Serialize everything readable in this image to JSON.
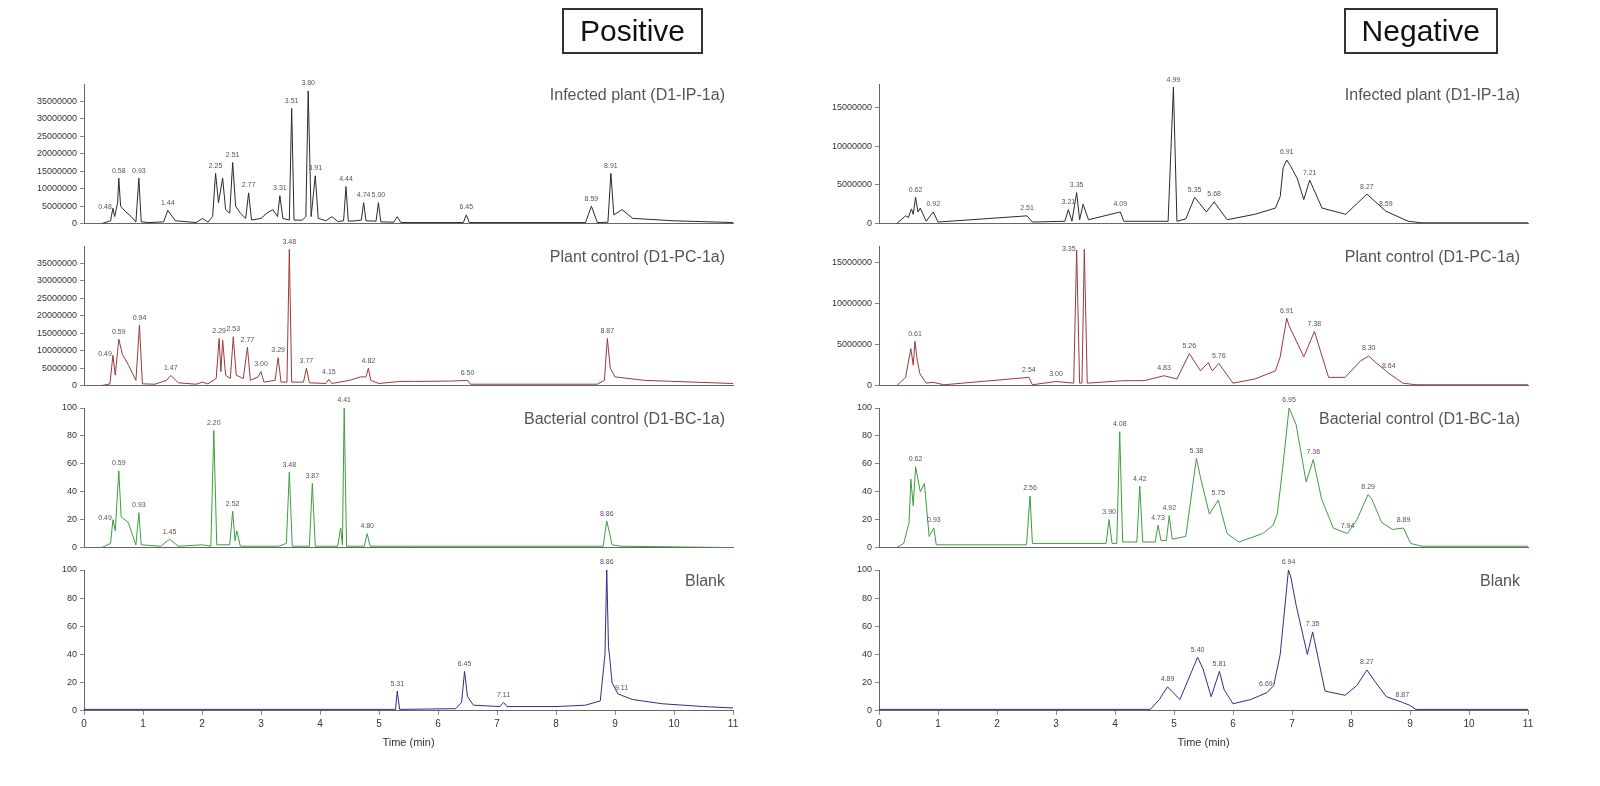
{
  "chart_data": [
    {
      "type": "line",
      "title": "Positive",
      "annotations": [
        "Infected plant (D1-IP-1a)",
        {
          "text": "0.48",
          "x": 0.49,
          "y": 4400000
        },
        {
          "text": "0.58",
          "x": 0.59,
          "y": 13000000
        },
        {
          "text": "0.93",
          "x": 0.93,
          "y": 13000000
        },
        {
          "text": "1.44",
          "x": 1.42,
          "y": 3800000
        },
        {
          "text": "2.25",
          "x": 2.23,
          "y": 14400000
        },
        {
          "text": "2.51",
          "x": 2.52,
          "y": 17500000
        },
        {
          "text": "2.77",
          "x": 2.79,
          "y": 8800000
        },
        {
          "text": "3.31",
          "x": 3.32,
          "y": 8000000
        },
        {
          "text": "3.51",
          "x": 3.52,
          "y": 33000000
        },
        {
          "text": "3.80",
          "x": 3.8,
          "y": 38000000
        },
        {
          "text": "3.91",
          "x": 3.92,
          "y": 13700000
        },
        {
          "text": "4.44",
          "x": 4.44,
          "y": 10600000
        },
        {
          "text": "4.74",
          "x": 4.74,
          "y": 6000000
        },
        {
          "text": "5.00",
          "x": 4.99,
          "y": 6000000
        },
        {
          "text": "6.45",
          "x": 6.48,
          "y": 2500000
        },
        {
          "text": "8.59",
          "x": 8.6,
          "y": 5000000
        },
        {
          "text": "8.91",
          "x": 8.93,
          "y": 14400000
        }
      ],
      "series": [
        {
          "color": "#2b2b2b",
          "x": [
            0.3,
            0.45,
            0.49,
            0.52,
            0.57,
            0.59,
            0.62,
            0.7,
            0.8,
            0.88,
            0.93,
            0.97,
            1.1,
            1.35,
            1.42,
            1.55,
            1.9,
            2.01,
            2.1,
            2.18,
            2.23,
            2.28,
            2.35,
            2.4,
            2.47,
            2.52,
            2.57,
            2.65,
            2.74,
            2.79,
            2.84,
            3.0,
            3.1,
            3.2,
            3.28,
            3.32,
            3.37,
            3.48,
            3.52,
            3.56,
            3.7,
            3.76,
            3.8,
            3.85,
            3.92,
            3.97,
            4.1,
            4.2,
            4.3,
            4.4,
            4.44,
            4.48,
            4.6,
            4.7,
            4.74,
            4.78,
            4.95,
            4.99,
            5.03,
            5.25,
            5.31,
            5.37,
            6.43,
            6.48,
            6.53,
            8.5,
            8.6,
            8.7,
            8.88,
            8.93,
            8.98,
            9.12,
            9.3,
            10.0,
            11.0
          ],
          "values": [
            0,
            800000,
            4400000,
            2000000,
            6000000,
            13000000,
            5000000,
            3500000,
            2000000,
            500000,
            13000000,
            500000,
            300000,
            500000,
            3800000,
            800000,
            300000,
            1500000,
            400000,
            2000000,
            14400000,
            6000000,
            13000000,
            4000000,
            3000000,
            17500000,
            5000000,
            3000000,
            1500000,
            8800000,
            1000000,
            1500000,
            3000000,
            4000000,
            2000000,
            8000000,
            1500000,
            1000000,
            33000000,
            1000000,
            1000000,
            2000000,
            38000000,
            2000000,
            13700000,
            1500000,
            800000,
            2000000,
            600000,
            800000,
            10600000,
            700000,
            800000,
            1000000,
            6000000,
            800000,
            700000,
            6000000,
            500000,
            400000,
            2000000,
            300000,
            300000,
            2500000,
            300000,
            300000,
            5000000,
            300000,
            400000,
            14400000,
            2500000,
            4000000,
            1500000,
            800000,
            300000
          ]
        }
      ],
      "xlim": [
        0,
        11
      ],
      "xticks": [
        0,
        1,
        2,
        3,
        4,
        5,
        6,
        7,
        8,
        9,
        10,
        11
      ],
      "ylim": [
        0,
        40000000
      ],
      "yticks": [
        0,
        5000000,
        10000000,
        15000000,
        20000000,
        25000000,
        30000000,
        35000000
      ],
      "tick_labels": "y",
      "marker": "none",
      "line_style": "solid"
    },
    {
      "type": "line",
      "annotations": [
        "Plant control (D1-PC-1a)",
        {
          "text": "0.49",
          "x": 0.49,
          "y": 8700000
        },
        {
          "text": "0.59",
          "x": 0.59,
          "y": 13300000
        },
        {
          "text": "0.94",
          "x": 0.94,
          "y": 17300000
        },
        {
          "text": "1.47",
          "x": 1.47,
          "y": 2900000
        },
        {
          "text": "2.29",
          "x": 2.29,
          "y": 13500000
        },
        {
          "text": "2.53",
          "x": 2.53,
          "y": 14000000
        },
        {
          "text": "2.77",
          "x": 2.77,
          "y": 11000000
        },
        {
          "text": "3.00",
          "x": 3.0,
          "y": 4000000
        },
        {
          "text": "3.29",
          "x": 3.29,
          "y": 8000000
        },
        {
          "text": "3.48",
          "x": 3.48,
          "y": 39000000
        },
        {
          "text": "3.77",
          "x": 3.77,
          "y": 5000000
        },
        {
          "text": "4.15",
          "x": 4.15,
          "y": 1800000
        },
        {
          "text": "4.82",
          "x": 4.82,
          "y": 5000000
        },
        {
          "text": "6.50",
          "x": 6.5,
          "y": 1500000
        },
        {
          "text": "8.87",
          "x": 8.87,
          "y": 13500000
        }
      ],
      "series": [
        {
          "color": "#9c3a3a",
          "x": [
            0.3,
            0.44,
            0.49,
            0.53,
            0.59,
            0.65,
            0.75,
            0.88,
            0.94,
            0.99,
            1.2,
            1.4,
            1.47,
            1.6,
            1.9,
            2.01,
            2.1,
            2.24,
            2.29,
            2.32,
            2.35,
            2.4,
            2.48,
            2.53,
            2.58,
            2.7,
            2.77,
            2.82,
            2.95,
            3.0,
            3.05,
            3.24,
            3.29,
            3.34,
            3.44,
            3.48,
            3.52,
            3.72,
            3.77,
            3.82,
            4.1,
            4.15,
            4.2,
            4.5,
            4.69,
            4.78,
            4.82,
            4.86,
            5.0,
            5.35,
            5.62,
            6.23,
            6.5,
            6.55,
            8.7,
            8.82,
            8.87,
            8.92,
            9.0,
            9.5,
            11.0
          ],
          "values": [
            0,
            500000,
            8700000,
            3000000,
            13300000,
            9000000,
            6000000,
            1500000,
            17300000,
            500000,
            400000,
            1500000,
            2900000,
            800000,
            400000,
            1000000,
            500000,
            2000000,
            13500000,
            4000000,
            13000000,
            3000000,
            2000000,
            14000000,
            3000000,
            2000000,
            11000000,
            1500000,
            2500000,
            4000000,
            1000000,
            1500000,
            8000000,
            1000000,
            1000000,
            39000000,
            1000000,
            1000000,
            5000000,
            800000,
            600000,
            1800000,
            600000,
            1500000,
            2500000,
            2500000,
            5000000,
            1500000,
            600000,
            1200000,
            1200000,
            1300000,
            1500000,
            400000,
            400000,
            1500000,
            13500000,
            5000000,
            2500000,
            1500000,
            600000
          ]
        }
      ],
      "xlim": [
        0,
        11
      ],
      "xticks": [
        0,
        1,
        2,
        3,
        4,
        5,
        6,
        7,
        8,
        9,
        10,
        11
      ],
      "ylim": [
        0,
        40000000
      ],
      "yticks": [
        0,
        5000000,
        10000000,
        15000000,
        20000000,
        25000000,
        30000000,
        35000000
      ],
      "tick_labels": "y",
      "marker": "none",
      "line_style": "solid"
    },
    {
      "type": "line",
      "annotations": [
        "Bacterial control (D1-BC-1a)",
        {
          "text": "0.49",
          "x": 0.49,
          "y": 20
        },
        {
          "text": "0.59",
          "x": 0.59,
          "y": 55
        },
        {
          "text": "0.93",
          "x": 0.93,
          "y": 25
        },
        {
          "text": "1.45",
          "x": 1.45,
          "y": 6
        },
        {
          "text": "2.20",
          "x": 2.2,
          "y": 84
        },
        {
          "text": "2.52",
          "x": 2.52,
          "y": 26
        },
        {
          "text": "3.48",
          "x": 3.48,
          "y": 54
        },
        {
          "text": "3.87",
          "x": 3.87,
          "y": 46
        },
        {
          "text": "4.41",
          "x": 4.41,
          "y": 100
        },
        {
          "text": "4.80",
          "x": 4.8,
          "y": 10
        },
        {
          "text": "8.86",
          "x": 8.86,
          "y": 19
        }
      ],
      "series": [
        {
          "color": "#3e9e3e",
          "x": [
            0.3,
            0.45,
            0.49,
            0.53,
            0.59,
            0.63,
            0.75,
            0.88,
            0.93,
            0.97,
            1.3,
            1.45,
            1.6,
            2.01,
            2.15,
            2.2,
            2.25,
            2.47,
            2.52,
            2.56,
            2.59,
            2.65,
            3.3,
            3.43,
            3.48,
            3.53,
            3.82,
            3.87,
            3.92,
            4.3,
            4.35,
            4.38,
            4.41,
            4.45,
            4.75,
            4.8,
            4.85,
            5.5,
            8.8,
            8.86,
            8.91,
            8.95,
            9.1,
            11.0
          ],
          "values": [
            0,
            3,
            20,
            12,
            55,
            22,
            18,
            2,
            25,
            2,
            1,
            6,
            1,
            2,
            1,
            84,
            2,
            2,
            26,
            5,
            12,
            1,
            1,
            3,
            54,
            1,
            1,
            46,
            1,
            1,
            14,
            2,
            100,
            1,
            1,
            10,
            1,
            1,
            1,
            19,
            10,
            2,
            1,
            0
          ]
        }
      ],
      "xlim": [
        0,
        11
      ],
      "xticks": [
        0,
        1,
        2,
        3,
        4,
        5,
        6,
        7,
        8,
        9,
        10,
        11
      ],
      "ylim": [
        0,
        100
      ],
      "yticks": [
        0,
        20,
        40,
        60,
        80,
        100
      ],
      "tick_labels": "y",
      "marker": "none",
      "line_style": "solid"
    },
    {
      "type": "line",
      "xlabel": "Time (min)",
      "annotations": [
        "Blank",
        {
          "text": "5.31",
          "x": 5.31,
          "y": 14
        },
        {
          "text": "6.45",
          "x": 6.45,
          "y": 28
        },
        {
          "text": "7.11",
          "x": 7.11,
          "y": 6
        },
        {
          "text": "8.86",
          "x": 8.86,
          "y": 100
        },
        {
          "text": "9.11",
          "x": 9.11,
          "y": 11
        }
      ],
      "series": [
        {
          "color": "#2e2e8c",
          "x": [
            0,
            1.0,
            3.0,
            5.2,
            5.28,
            5.31,
            5.35,
            6.3,
            6.4,
            6.45,
            6.5,
            6.6,
            7.05,
            7.11,
            7.17,
            8.0,
            8.5,
            8.75,
            8.83,
            8.86,
            8.89,
            8.91,
            8.95,
            9.05,
            9.11,
            9.3,
            9.8,
            10.5,
            11.0
          ],
          "values": [
            1,
            1,
            1,
            1,
            1,
            14,
            1,
            1.5,
            6,
            28,
            10,
            4,
            3,
            6,
            3,
            3,
            4,
            7,
            40,
            100,
            45,
            38,
            20,
            12,
            11,
            8,
            5,
            3,
            2
          ]
        }
      ],
      "xlim": [
        0,
        11
      ],
      "xticks": [
        0,
        1,
        2,
        3,
        4,
        5,
        6,
        7,
        8,
        9,
        10,
        11
      ],
      "ylim": [
        0,
        100
      ],
      "yticks": [
        0,
        20,
        40,
        60,
        80,
        100
      ],
      "marker": "none",
      "line_style": "solid"
    },
    {
      "type": "line",
      "title": "Negative",
      "annotations": [
        "Infected plant (D1-IP-1a)",
        {
          "text": "0.62",
          "x": 0.62,
          "y": 3400000
        },
        {
          "text": "0.92",
          "x": 0.92,
          "y": 1500000
        },
        {
          "text": "2.51",
          "x": 2.51,
          "y": 1000000
        },
        {
          "text": "3.21",
          "x": 3.21,
          "y": 1800000
        },
        {
          "text": "3.35",
          "x": 3.35,
          "y": 4000000
        },
        {
          "text": "4.09",
          "x": 4.09,
          "y": 1500000
        },
        {
          "text": "4.99",
          "x": 4.99,
          "y": 17600000
        },
        {
          "text": "5.35",
          "x": 5.35,
          "y": 3400000
        },
        {
          "text": "5.68",
          "x": 5.68,
          "y": 2800000
        },
        {
          "text": "6.91",
          "x": 6.91,
          "y": 8200000
        },
        {
          "text": "7.21",
          "x": 7.3,
          "y": 5600000
        },
        {
          "text": "8.27",
          "x": 8.27,
          "y": 3800000
        },
        {
          "text": "8.59",
          "x": 8.59,
          "y": 1600000
        }
      ],
      "series": [
        {
          "color": "#2b2b2b",
          "x": [
            0.3,
            0.45,
            0.5,
            0.55,
            0.58,
            0.62,
            0.66,
            0.7,
            0.8,
            0.92,
            1.0,
            2.51,
            2.6,
            3.15,
            3.21,
            3.27,
            3.35,
            3.4,
            3.46,
            3.55,
            4.09,
            4.15,
            4.9,
            4.99,
            5.05,
            5.2,
            5.35,
            5.55,
            5.68,
            5.9,
            6.37,
            6.72,
            6.8,
            6.85,
            6.91,
            6.97,
            7.09,
            7.2,
            7.3,
            7.51,
            7.91,
            8.27,
            8.59,
            8.97,
            9.2,
            11.0
          ],
          "values": [
            0,
            1000000,
            800000,
            1900000,
            1200000,
            3400000,
            1500000,
            2000000,
            300000,
            1500000,
            200000,
            1000000,
            200000,
            300000,
            1800000,
            300000,
            4000000,
            500000,
            2500000,
            500000,
            1500000,
            300000,
            300000,
            17600000,
            300000,
            600000,
            3400000,
            1500000,
            2800000,
            500000,
            1200000,
            2000000,
            3500000,
            7200000,
            8200000,
            7500000,
            5800000,
            3100000,
            5600000,
            2000000,
            1200000,
            3800000,
            1600000,
            300000,
            100000,
            100000
          ]
        }
      ],
      "xlim": [
        0,
        11
      ],
      "xticks": [
        0,
        1,
        2,
        3,
        4,
        5,
        6,
        7,
        8,
        9,
        10,
        11
      ],
      "ylim": [
        0,
        18000000
      ],
      "yticks": [
        0,
        5000000,
        10000000,
        15000000
      ],
      "tick_labels": "y",
      "marker": "none",
      "line_style": "solid"
    },
    {
      "type": "line",
      "annotations": [
        "Plant control (D1-PC-1a)",
        {
          "text": "0.61",
          "x": 0.61,
          "y": 5400000
        },
        {
          "text": "2.54",
          "x": 2.54,
          "y": 1000000
        },
        {
          "text": "3.00",
          "x": 3.0,
          "y": 500000
        },
        {
          "text": "3.35",
          "x": 3.35,
          "y": 16500000
        },
        {
          "text": "4.83",
          "x": 4.83,
          "y": 1200000
        },
        {
          "text": "5.26",
          "x": 5.26,
          "y": 3900000
        },
        {
          "text": "5.76",
          "x": 5.76,
          "y": 2700000
        },
        {
          "text": "6.91",
          "x": 6.91,
          "y": 8200000
        },
        {
          "text": "7.38",
          "x": 7.38,
          "y": 6600000
        },
        {
          "text": "8.30",
          "x": 8.3,
          "y": 3600000
        },
        {
          "text": "8.64",
          "x": 8.64,
          "y": 1500000
        }
      ],
      "series": [
        {
          "color": "#9c3a3a",
          "x": [
            0.3,
            0.45,
            0.54,
            0.58,
            0.61,
            0.64,
            0.69,
            0.8,
            0.92,
            1.1,
            2.54,
            2.6,
            3.0,
            3.3,
            3.35,
            3.4,
            3.44,
            3.48,
            3.53,
            4.15,
            4.5,
            4.83,
            5.05,
            5.26,
            5.45,
            5.58,
            5.65,
            5.76,
            6.0,
            6.37,
            6.72,
            6.8,
            6.91,
            6.95,
            7.2,
            7.38,
            7.62,
            7.9,
            8.16,
            8.3,
            8.39,
            8.64,
            8.88,
            9.1,
            11.0
          ],
          "values": [
            0,
            1000000,
            4500000,
            2500000,
            5400000,
            3500000,
            1500000,
            300000,
            400000,
            100000,
            1000000,
            100000,
            500000,
            300000,
            16500000,
            300000,
            300000,
            16600000,
            300000,
            600000,
            600000,
            1200000,
            800000,
            3900000,
            1800000,
            2800000,
            1800000,
            2700000,
            300000,
            800000,
            1800000,
            3500000,
            8200000,
            7300000,
            3500000,
            6600000,
            1000000,
            1000000,
            3000000,
            3600000,
            3000000,
            1500000,
            300000,
            100000,
            100000
          ]
        }
      ],
      "xlim": [
        0,
        11
      ],
      "xticks": [
        0,
        1,
        2,
        3,
        4,
        5,
        6,
        7,
        8,
        9,
        10,
        11
      ],
      "ylim": [
        0,
        17000000
      ],
      "yticks": [
        0,
        5000000,
        10000000,
        15000000
      ],
      "tick_labels": "y",
      "marker": "none",
      "line_style": "solid"
    },
    {
      "type": "line",
      "annotations": [
        "Bacterial control (D1-BC-1a)",
        {
          "text": "0.62",
          "x": 0.62,
          "y": 58
        },
        {
          "text": "0.93",
          "x": 0.93,
          "y": 14
        },
        {
          "text": "2.56",
          "x": 2.56,
          "y": 37
        },
        {
          "text": "3.90",
          "x": 3.9,
          "y": 20
        },
        {
          "text": "4.08",
          "x": 4.08,
          "y": 83
        },
        {
          "text": "4.42",
          "x": 4.42,
          "y": 44
        },
        {
          "text": "4.73",
          "x": 4.73,
          "y": 16
        },
        {
          "text": "4.92",
          "x": 4.92,
          "y": 23
        },
        {
          "text": "5.38",
          "x": 5.38,
          "y": 64
        },
        {
          "text": "5.75",
          "x": 5.75,
          "y": 34
        },
        {
          "text": "6.95",
          "x": 6.95,
          "y": 100
        },
        {
          "text": "7.36",
          "x": 7.36,
          "y": 63
        },
        {
          "text": "7.94",
          "x": 7.94,
          "y": 10
        },
        {
          "text": "8.29",
          "x": 8.29,
          "y": 38
        },
        {
          "text": "8.89",
          "x": 8.89,
          "y": 14
        }
      ],
      "series": [
        {
          "color": "#3e9e3e",
          "x": [
            0.3,
            0.42,
            0.51,
            0.54,
            0.58,
            0.62,
            0.7,
            0.77,
            0.85,
            0.93,
            0.97,
            2.5,
            2.56,
            2.6,
            3.85,
            3.9,
            3.95,
            4.03,
            4.08,
            4.13,
            4.37,
            4.42,
            4.47,
            4.68,
            4.73,
            4.78,
            4.87,
            4.92,
            4.97,
            5.2,
            5.38,
            5.45,
            5.6,
            5.75,
            5.9,
            6.1,
            6.5,
            6.68,
            6.75,
            6.85,
            6.95,
            7.07,
            7.24,
            7.36,
            7.5,
            7.7,
            7.94,
            8.1,
            8.29,
            8.35,
            8.52,
            8.7,
            8.89,
            9.01,
            9.2,
            11.0
          ],
          "values": [
            0,
            3,
            18,
            49,
            30,
            58,
            40,
            46,
            8,
            14,
            2,
            2,
            37,
            3,
            3,
            20,
            3,
            3,
            83,
            4,
            4,
            44,
            4,
            4,
            16,
            5,
            5,
            23,
            6,
            8,
            64,
            50,
            24,
            34,
            10,
            4,
            10,
            16,
            24,
            60,
            100,
            88,
            47,
            63,
            35,
            14,
            10,
            20,
            38,
            35,
            18,
            13,
            14,
            3,
            1,
            1
          ]
        }
      ],
      "xlim": [
        0,
        11
      ],
      "xticks": [
        0,
        1,
        2,
        3,
        4,
        5,
        6,
        7,
        8,
        9,
        10,
        11
      ],
      "ylim": [
        0,
        100
      ],
      "yticks": [
        0,
        20,
        40,
        60,
        80,
        100
      ],
      "tick_labels": "y",
      "marker": "none",
      "line_style": "solid"
    },
    {
      "type": "line",
      "xlabel": "Time (min)",
      "annotations": [
        "Blank",
        {
          "text": "4.89",
          "x": 4.89,
          "y": 17
        },
        {
          "text": "5.40",
          "x": 5.4,
          "y": 38
        },
        {
          "text": "5.81",
          "x": 5.77,
          "y": 28
        },
        {
          "text": "6.69",
          "x": 6.69,
          "y": 18
        },
        {
          "text": "6.94",
          "x": 6.94,
          "y": 100
        },
        {
          "text": "7.35",
          "x": 7.35,
          "y": 56
        },
        {
          "text": "8.27",
          "x": 8.27,
          "y": 29
        },
        {
          "text": "8.87",
          "x": 8.87,
          "y": 6
        }
      ],
      "series": [
        {
          "color": "#2e2e8c",
          "x": [
            0,
            4.6,
            4.75,
            4.89,
            5.1,
            5.4,
            5.49,
            5.63,
            5.77,
            5.85,
            6.0,
            6.3,
            6.58,
            6.69,
            6.8,
            6.94,
            6.98,
            7.07,
            7.26,
            7.35,
            7.38,
            7.56,
            7.9,
            8.1,
            8.27,
            8.42,
            8.6,
            8.87,
            8.99,
            9.1,
            11.0
          ],
          "values": [
            1,
            1,
            8,
            17,
            8,
            38,
            30,
            10,
            28,
            15,
            5,
            8,
            13,
            18,
            40,
            100,
            95,
            75,
            40,
            56,
            50,
            14,
            11,
            18,
            29,
            20,
            10,
            6,
            4,
            1,
            1
          ]
        }
      ],
      "xlim": [
        0,
        11
      ],
      "xticks": [
        0,
        1,
        2,
        3,
        4,
        5,
        6,
        7,
        8,
        9,
        10,
        11
      ],
      "ylim": [
        0,
        100
      ],
      "yticks": [
        0,
        20,
        40,
        60,
        80,
        100
      ],
      "marker": "none",
      "line_style": "solid"
    }
  ]
}
